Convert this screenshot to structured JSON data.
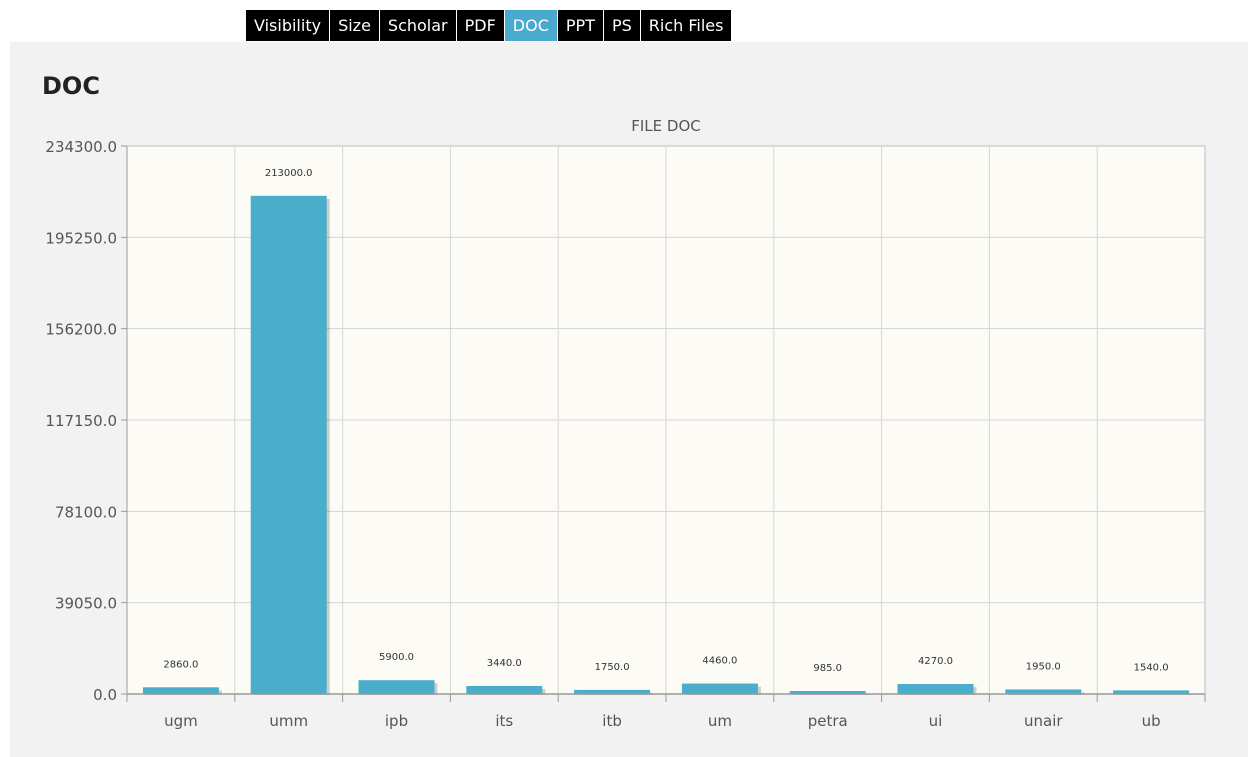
{
  "tabs": [
    {
      "label": "Visibility",
      "active": false
    },
    {
      "label": "Size",
      "active": false
    },
    {
      "label": "Scholar",
      "active": false
    },
    {
      "label": "PDF",
      "active": false
    },
    {
      "label": "DOC",
      "active": true
    },
    {
      "label": "PPT",
      "active": false
    },
    {
      "label": "PS",
      "active": false
    },
    {
      "label": "Rich Files",
      "active": false
    }
  ],
  "panel": {
    "title": "DOC"
  },
  "colors": {
    "bar": "#4aaecb",
    "tab_active": "#4aaacd",
    "plot_bg": "#fcfbf6",
    "panel_bg": "#f2f2f2"
  },
  "chart_data": {
    "type": "bar",
    "title": "FILE DOC",
    "categories": [
      "ugm",
      "umm",
      "ipb",
      "its",
      "itb",
      "um",
      "petra",
      "ui",
      "unair",
      "ub"
    ],
    "values": [
      2860,
      213000,
      5900,
      3440,
      1750,
      4460,
      985,
      4270,
      1950,
      1540
    ],
    "data_labels": [
      "2860.0",
      "213000.0",
      "5900.0",
      "3440.0",
      "1750.0",
      "4460.0",
      "985.0",
      "4270.0",
      "1950.0",
      "1540.0"
    ],
    "yticks": [
      0,
      39050,
      78100,
      117150,
      156200,
      195250,
      234300
    ],
    "ytick_labels": [
      "0.0",
      "39050.0",
      "78100.0",
      "117150.0",
      "156200.0",
      "195250.0",
      "234300.0"
    ],
    "ylim": [
      0,
      234300
    ],
    "grid": true,
    "legend": "none"
  }
}
